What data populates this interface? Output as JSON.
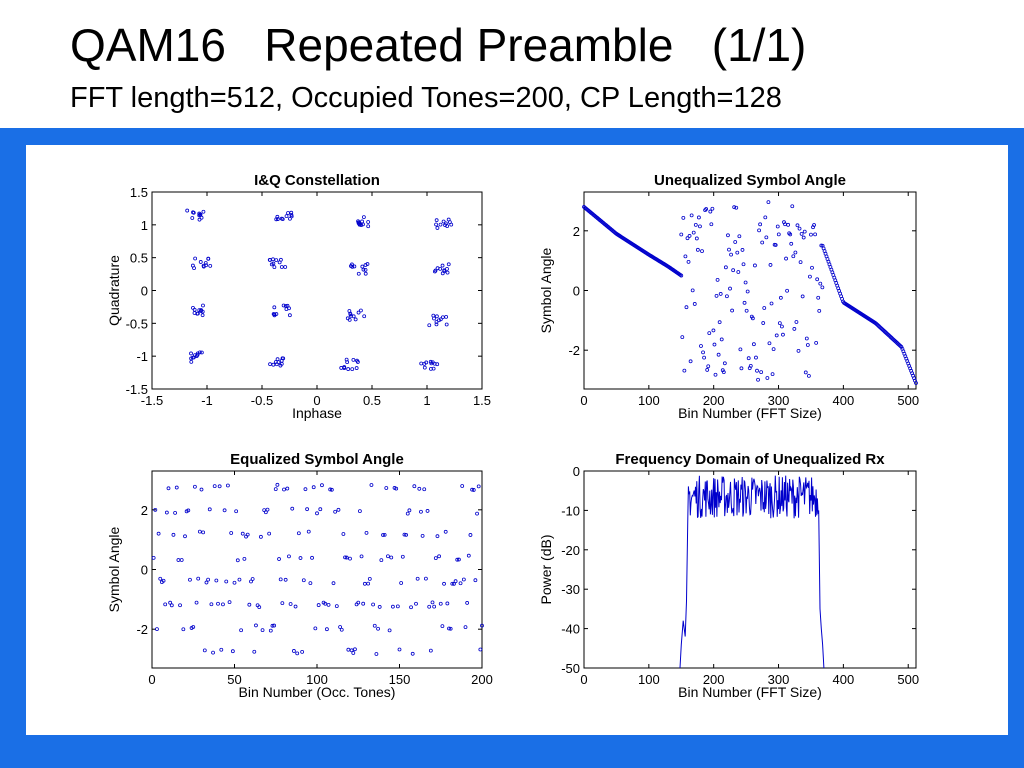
{
  "slide": {
    "title": "QAM16   Repeated Preamble   (1/1)",
    "subtitle": "FFT length=512, Occupied Tones=200, CP Length=128"
  },
  "colors": {
    "background_panel": "#1a6fe6",
    "plot_marker": "#0000cc"
  },
  "chart_data": [
    {
      "type": "scatter",
      "title": "I&Q Constellation",
      "xlabel": "Inphase",
      "ylabel": "Quadrature",
      "xlim": [
        -1.5,
        1.5
      ],
      "ylim": [
        -1.5,
        1.5
      ],
      "xticks": [
        "-1.5",
        "-1",
        "-0.5",
        "0",
        "0.5",
        "1",
        "1.5"
      ],
      "yticks": [
        "1.5",
        "1",
        "0.5",
        "0",
        "-0.5",
        "-1",
        "-1.5"
      ],
      "xtick_values": [
        -1.5,
        -1,
        -0.5,
        0,
        0.5,
        1,
        1.5
      ],
      "ytick_values": [
        1.5,
        1,
        0.5,
        0,
        -0.5,
        -1,
        -1.5
      ],
      "clusters": [
        [
          -1.1,
          1.15
        ],
        [
          -0.3,
          1.12
        ],
        [
          0.4,
          1.05
        ],
        [
          1.15,
          1.02
        ],
        [
          -1.05,
          0.42
        ],
        [
          -0.35,
          0.4
        ],
        [
          0.38,
          0.33
        ],
        [
          1.12,
          0.32
        ],
        [
          -1.08,
          -0.3
        ],
        [
          -0.32,
          -0.3
        ],
        [
          0.35,
          -0.38
        ],
        [
          1.1,
          -0.45
        ],
        [
          -1.12,
          -1.02
        ],
        [
          -0.38,
          -1.08
        ],
        [
          0.3,
          -1.12
        ],
        [
          1.02,
          -1.13
        ]
      ]
    },
    {
      "type": "scatter",
      "title": "Unequalized Symbol Angle",
      "xlabel": "Bin Number (FFT Size)",
      "ylabel": "Symbol Angle",
      "xlim": [
        0,
        512
      ],
      "ylim": [
        -3.3,
        3.3
      ],
      "xticks": [
        "0",
        "100",
        "200",
        "300",
        "400",
        "500"
      ],
      "yticks": [
        "2",
        "0",
        "-2"
      ],
      "xtick_values": [
        0,
        100,
        200,
        300,
        400,
        500
      ],
      "ytick_values": [
        2,
        0,
        -2
      ],
      "smooth_segments": [
        {
          "x": [
            0,
            50,
            100,
            130,
            150
          ],
          "y": [
            2.8,
            1.9,
            1.2,
            0.8,
            0.5
          ]
        },
        {
          "x": [
            368,
            400,
            450,
            490,
            512
          ],
          "y": [
            1.5,
            -0.4,
            -1.1,
            -1.9,
            -3.1
          ]
        }
      ],
      "scatter_range": [
        150,
        368
      ]
    },
    {
      "type": "scatter",
      "title": "Equalized Symbol Angle",
      "xlabel": "Bin Number (Occ. Tones)",
      "ylabel": "Symbol Angle",
      "xlim": [
        0,
        200
      ],
      "ylim": [
        -3.3,
        3.3
      ],
      "xticks": [
        "0",
        "50",
        "100",
        "150",
        "200"
      ],
      "yticks": [
        "2",
        "0",
        "-2"
      ],
      "xtick_values": [
        0,
        50,
        100,
        150,
        200
      ],
      "ytick_values": [
        2,
        0,
        -2
      ],
      "levels": [
        2.75,
        1.96,
        1.18,
        0.39,
        -0.39,
        -1.18,
        -1.96,
        -2.75
      ]
    },
    {
      "type": "line",
      "title": "Frequency Domain of Unequalized Rx",
      "xlabel": "Bin Number (FFT Size)",
      "ylabel": "Power (dB)",
      "xlim": [
        0,
        512
      ],
      "ylim": [
        -50,
        0
      ],
      "xticks": [
        "0",
        "100",
        "200",
        "300",
        "400",
        "500"
      ],
      "yticks": [
        "0",
        "-10",
        "-20",
        "-30",
        "-40",
        "-50"
      ],
      "xtick_values": [
        0,
        100,
        200,
        300,
        400,
        500
      ],
      "ytick_values": [
        0,
        -10,
        -20,
        -30,
        -40,
        -50
      ],
      "band_edges": [
        160,
        362
      ],
      "passband_range_db": [
        -12,
        -1
      ]
    }
  ]
}
